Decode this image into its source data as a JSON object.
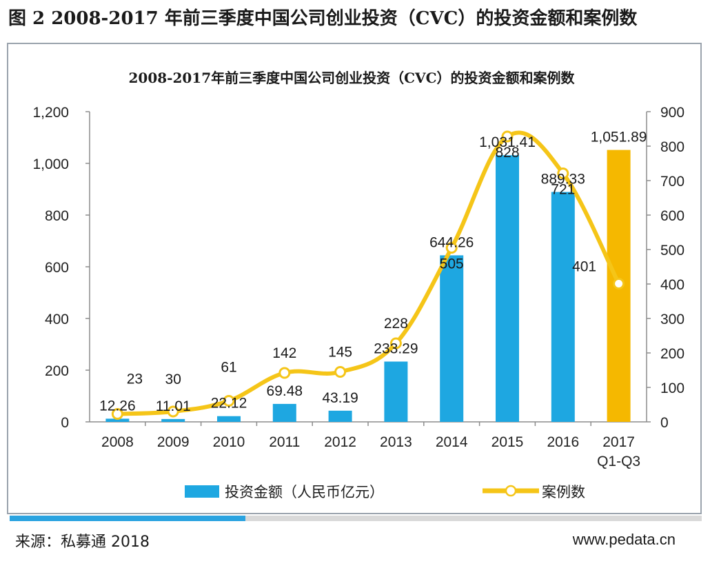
{
  "figure_title": "图 2 2008-2017 年前三季度中国公司创业投资（CVC）的投资金额和案例数",
  "source": "来源：私募通 2018",
  "website": "www.pedata.cn",
  "colors": {
    "bar": "#1ea7e1",
    "bar_highlight": "#f5b800",
    "line": "#f5c518",
    "marker_fill": "#ffffff"
  },
  "chart_data": {
    "type": "bar",
    "title": "2008-2017年前三季度中国公司创业投资（CVC）的投资金额和案例数",
    "categories": [
      "2008",
      "2009",
      "2010",
      "2011",
      "2012",
      "2013",
      "2014",
      "2015",
      "2016",
      "2017\nQ1-Q3"
    ],
    "series": [
      {
        "name": "投资金额（人民币亿元）",
        "type": "bar",
        "axis": "left",
        "values": [
          12.26,
          11.01,
          22.12,
          69.48,
          43.19,
          233.29,
          644.26,
          1031.41,
          889.33,
          1051.89
        ],
        "labels": [
          "12.26",
          "11.01",
          "22.12",
          "69.48",
          "43.19",
          "233.29",
          "644.26",
          "1,031.41",
          "889.33",
          "1,051.89"
        ]
      },
      {
        "name": "案例数",
        "type": "line",
        "axis": "right",
        "values": [
          23,
          30,
          61,
          142,
          145,
          228,
          505,
          828,
          721,
          401
        ],
        "labels": [
          "23",
          "30",
          "61",
          "142",
          "145",
          "228",
          "505",
          "828",
          "721",
          "401"
        ]
      }
    ],
    "y_left": {
      "min": 0,
      "max": 1200,
      "ticks": [
        "0",
        "200",
        "400",
        "600",
        "800",
        "1,000",
        "1,200"
      ]
    },
    "y_right": {
      "min": 0,
      "max": 900,
      "ticks": [
        "0",
        "100",
        "200",
        "300",
        "400",
        "500",
        "600",
        "700",
        "800",
        "900"
      ]
    },
    "legend_position": "bottom",
    "grid": false
  }
}
